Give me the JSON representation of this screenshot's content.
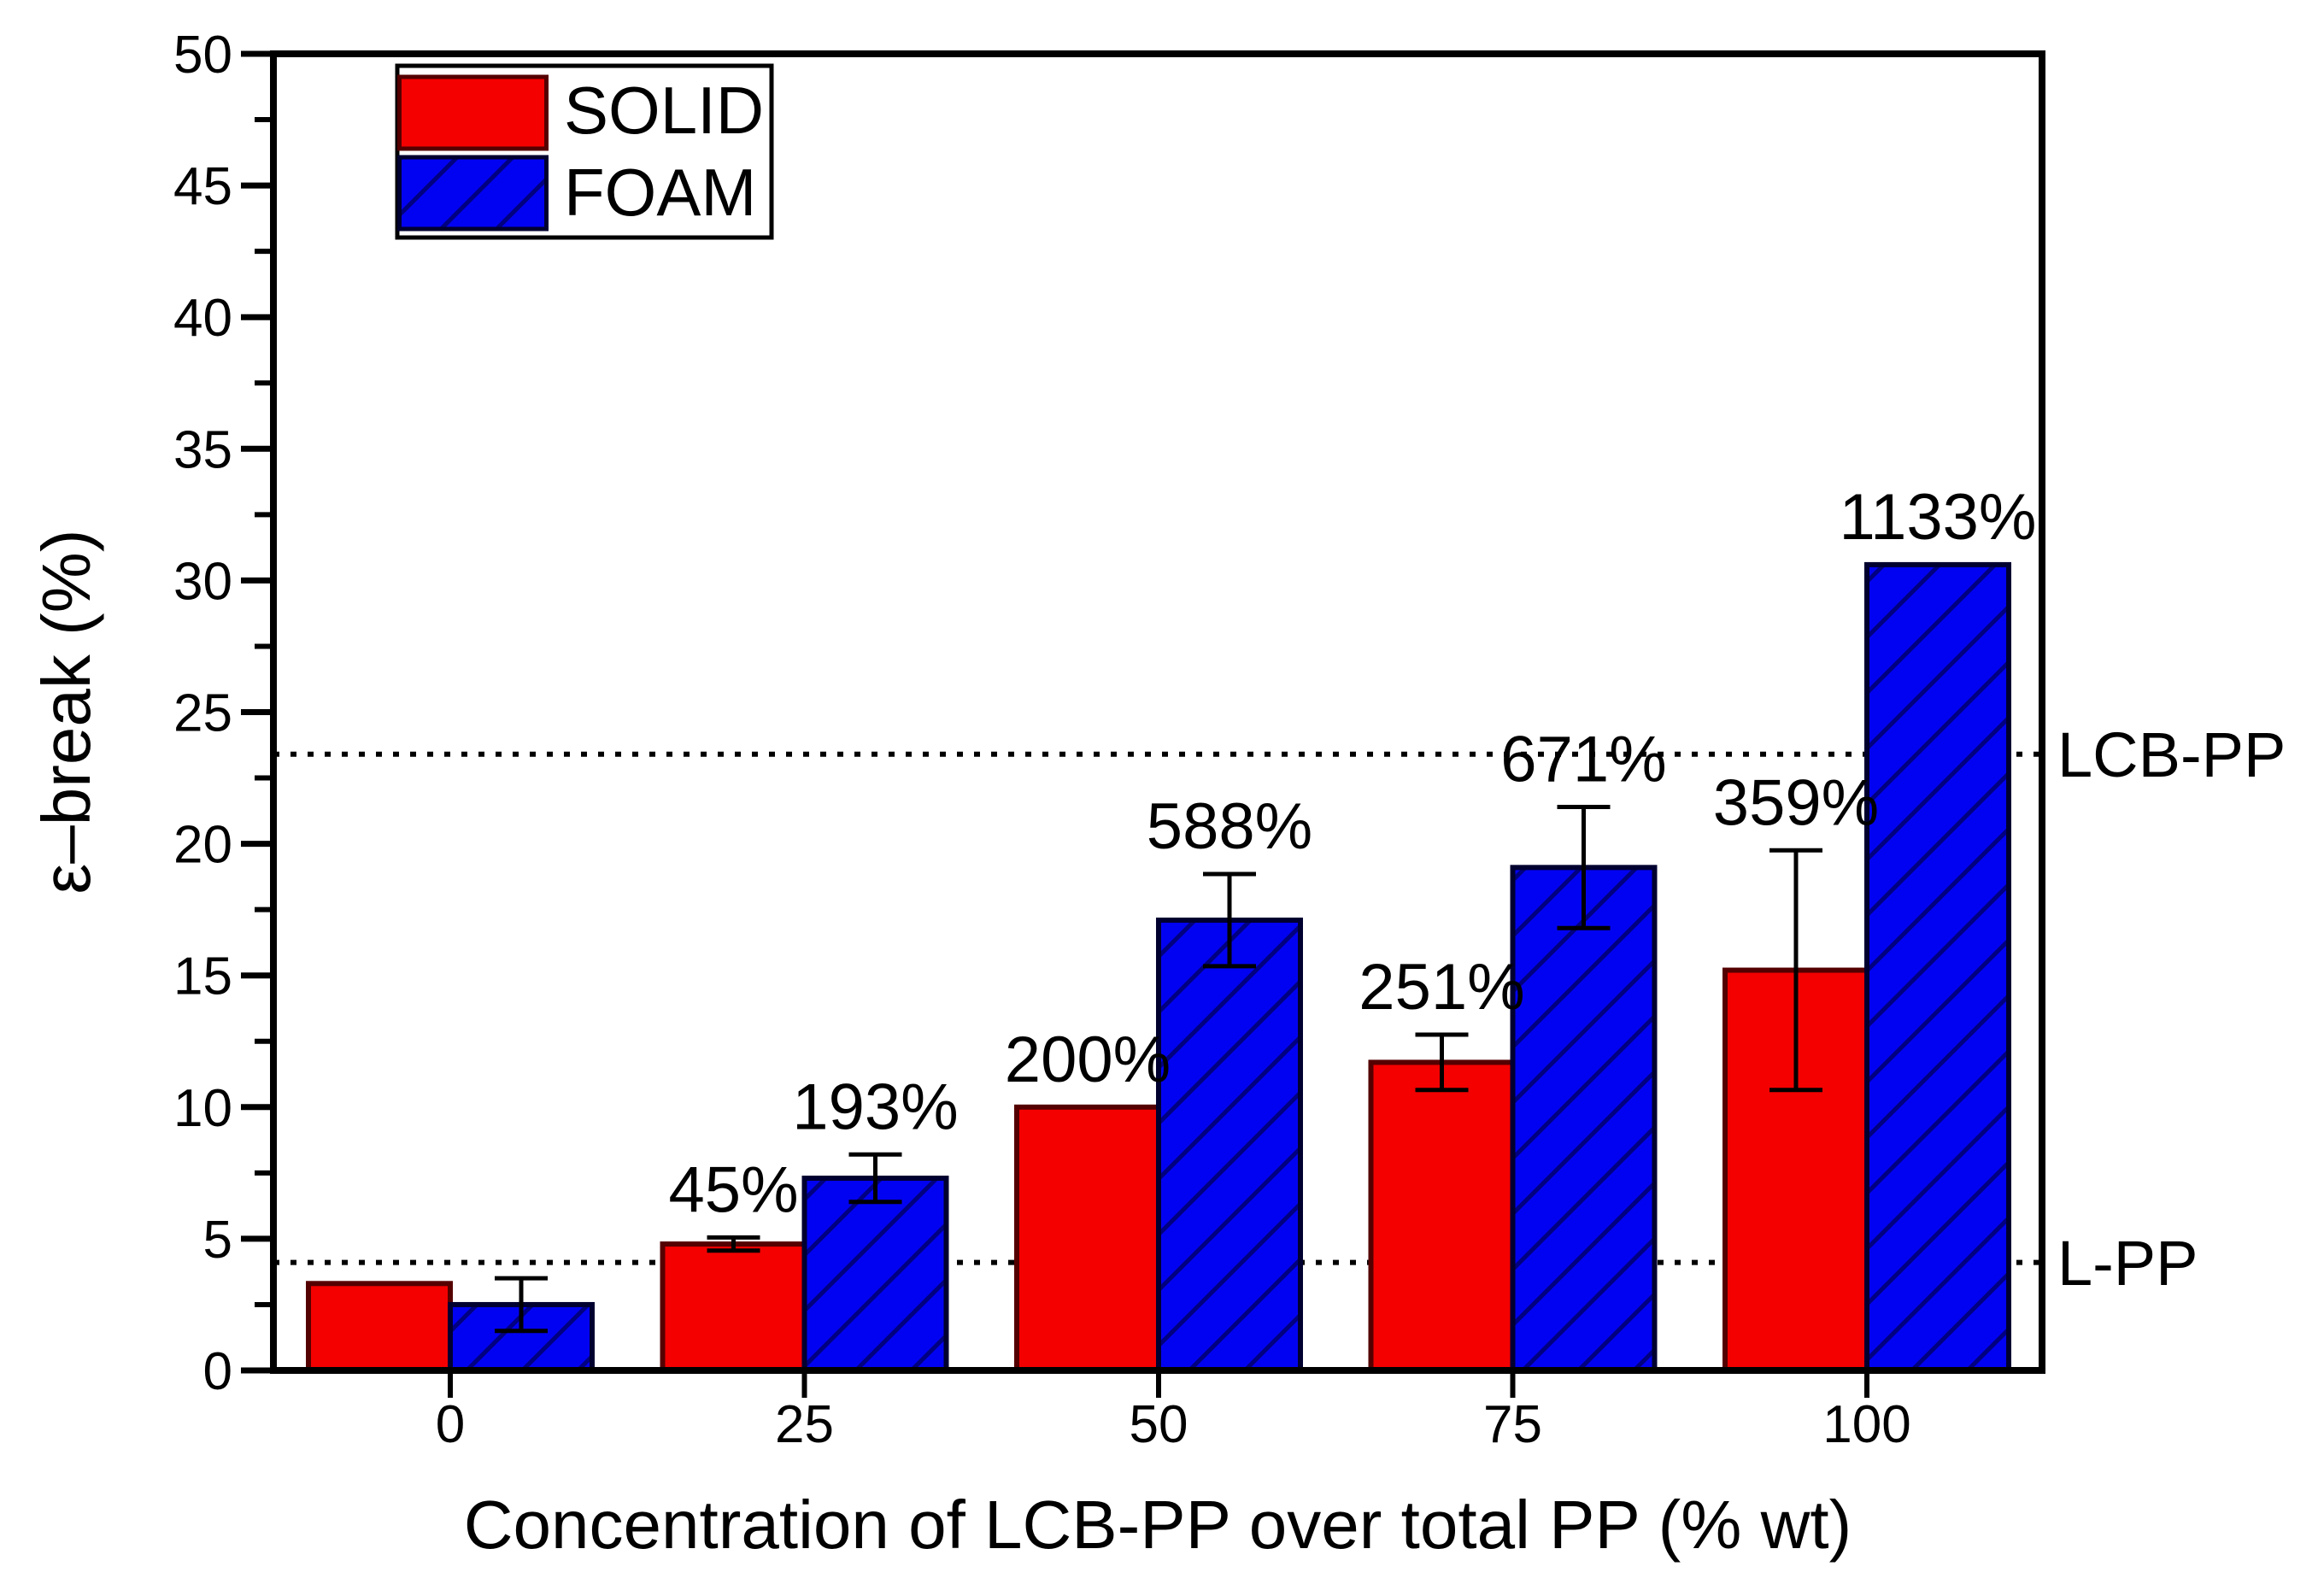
{
  "figure": {
    "background": "#ffffff"
  },
  "chart_data": {
    "type": "bar",
    "title": "",
    "xlabel": "Concentration of LCB-PP over total PP (% wt)",
    "ylabel": "ε–break (%)",
    "categories": [
      "0",
      "25",
      "50",
      "75",
      "100"
    ],
    "y_axis": {
      "min": 0,
      "max": 50,
      "major_step": 5,
      "minor_step": 2.5,
      "tick_labels": [
        "0",
        "5",
        "10",
        "15",
        "20",
        "25",
        "30",
        "35",
        "40",
        "45",
        "50"
      ]
    },
    "x_axis": {
      "tick_labels": [
        "0",
        "25",
        "50",
        "75",
        "100"
      ]
    },
    "grid": false,
    "legend": {
      "position": "top-left",
      "items": [
        "SOLID",
        "FOAM"
      ]
    },
    "series": [
      {
        "name": "SOLID",
        "fill": "#f40000",
        "border": "#550000",
        "hatch": false,
        "label_color": "#e01212",
        "values": [
          3.3,
          4.8,
          10.0,
          11.7,
          15.2
        ],
        "errors": [
          0,
          0.25,
          0,
          1.05,
          4.55
        ],
        "bar_labels": [
          "",
          "45%",
          "200%",
          "251%",
          "359%"
        ]
      },
      {
        "name": "FOAM",
        "fill": "#0202f2",
        "border": "#000030",
        "hatch": true,
        "hatch_color": "#000080",
        "label_color": "#1818c8",
        "values": [
          2.5,
          7.3,
          17.1,
          19.1,
          30.6
        ],
        "errors": [
          1.0,
          0.9,
          1.75,
          2.3,
          0
        ],
        "bar_labels": [
          "",
          "193%",
          "588%",
          "671%",
          "1133%"
        ]
      }
    ],
    "reference_lines": [
      {
        "label": "LCB-PP",
        "value": 23.4
      },
      {
        "label": "L-PP",
        "value": 4.1
      }
    ],
    "error_bar_color": "#000000"
  }
}
